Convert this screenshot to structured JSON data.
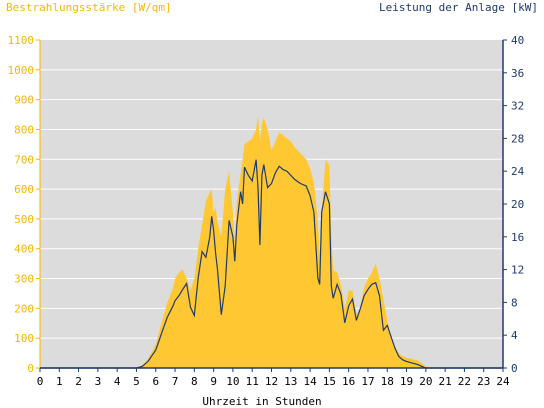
{
  "colors": {
    "plot_background": "#dcdcdc",
    "irradiance_fill": "#ffc832",
    "power_line": "#1f3a6e",
    "left_axis": "#f5b800",
    "right_axis": "#1f3a6e",
    "grid": "#ffffff"
  },
  "chart_data": {
    "type": "area",
    "title": "",
    "left_axis_title": "Bestrahlungsstärke [W/qm]",
    "right_axis_title": "Leistung der Anlage [kW]",
    "xlabel": "Uhrzeit in Stunden",
    "xlim": [
      0,
      24
    ],
    "x_ticks": [
      "0",
      "1",
      "2",
      "3",
      "4",
      "5",
      "6",
      "7",
      "8",
      "9",
      "10",
      "11",
      "12",
      "13",
      "14",
      "15",
      "16",
      "17",
      "18",
      "19",
      "20",
      "21",
      "22",
      "23",
      "24"
    ],
    "y_left": {
      "lim": [
        0,
        1100
      ],
      "ticks": [
        "0",
        "100",
        "200",
        "300",
        "400",
        "500",
        "600",
        "700",
        "800",
        "900",
        "1000",
        "1100"
      ]
    },
    "y_right": {
      "lim": [
        0,
        40
      ],
      "ticks": [
        "0",
        "4",
        "8",
        "12",
        "16",
        "20",
        "24",
        "28",
        "32",
        "36",
        "40"
      ]
    },
    "grid": "horizontal",
    "series": [
      {
        "name": "Bestrahlungsstärke [W/qm]",
        "axis": "left",
        "style": "area",
        "x": [
          0,
          5.0,
          5.3,
          5.6,
          6.0,
          6.3,
          6.6,
          6.9,
          7.0,
          7.2,
          7.4,
          7.6,
          7.8,
          8.0,
          8.2,
          8.4,
          8.6,
          8.8,
          8.9,
          9.0,
          9.1,
          9.2,
          9.4,
          9.6,
          9.8,
          10.0,
          10.1,
          10.2,
          10.4,
          10.5,
          10.6,
          10.8,
          11.0,
          11.2,
          11.3,
          11.4,
          11.5,
          11.6,
          11.8,
          12.0,
          12.2,
          12.4,
          12.6,
          12.8,
          13.0,
          13.2,
          13.5,
          13.8,
          14.0,
          14.2,
          14.4,
          14.5,
          14.6,
          14.8,
          15.0,
          15.1,
          15.2,
          15.4,
          15.6,
          15.8,
          16.0,
          16.2,
          16.4,
          16.6,
          16.8,
          17.0,
          17.2,
          17.4,
          17.6,
          17.8,
          18.0,
          18.2,
          18.4,
          18.6,
          18.8,
          19.0,
          19.3,
          19.6,
          19.8,
          20.0,
          20.2,
          24
        ],
        "y": [
          0,
          0,
          10,
          30,
          80,
          150,
          220,
          270,
          300,
          320,
          330,
          300,
          260,
          300,
          400,
          480,
          560,
          590,
          600,
          520,
          540,
          490,
          440,
          600,
          660,
          520,
          420,
          560,
          650,
          700,
          750,
          760,
          770,
          800,
          850,
          760,
          820,
          840,
          800,
          730,
          760,
          790,
          780,
          770,
          760,
          740,
          720,
          700,
          670,
          620,
          500,
          380,
          520,
          700,
          680,
          450,
          330,
          320,
          280,
          200,
          260,
          260,
          180,
          200,
          270,
          300,
          320,
          350,
          300,
          230,
          160,
          100,
          70,
          50,
          40,
          35,
          30,
          25,
          15,
          5,
          0,
          0
        ]
      },
      {
        "name": "Leistung der Anlage [kW]",
        "axis": "right",
        "style": "line",
        "x": [
          0,
          5.0,
          5.3,
          5.6,
          6.0,
          6.3,
          6.6,
          6.9,
          7.0,
          7.2,
          7.4,
          7.6,
          7.8,
          8.0,
          8.2,
          8.4,
          8.6,
          8.8,
          8.9,
          9.0,
          9.1,
          9.2,
          9.4,
          9.6,
          9.8,
          10.0,
          10.1,
          10.2,
          10.4,
          10.5,
          10.6,
          10.8,
          11.0,
          11.2,
          11.3,
          11.4,
          11.5,
          11.6,
          11.8,
          12.0,
          12.2,
          12.4,
          12.6,
          12.8,
          13.0,
          13.2,
          13.5,
          13.8,
          14.0,
          14.2,
          14.4,
          14.5,
          14.6,
          14.8,
          15.0,
          15.1,
          15.2,
          15.4,
          15.6,
          15.8,
          16.0,
          16.2,
          16.4,
          16.6,
          16.8,
          17.0,
          17.2,
          17.4,
          17.6,
          17.8,
          18.0,
          18.2,
          18.4,
          18.6,
          18.8,
          19.0,
          19.3,
          19.6,
          19.8,
          20.0,
          20.2,
          24
        ],
        "y": [
          0,
          0,
          0.2,
          0.8,
          2.2,
          4.2,
          6.2,
          7.6,
          8.2,
          8.8,
          9.6,
          10.3,
          7.4,
          6.4,
          11.0,
          14.2,
          13.5,
          16.0,
          18.5,
          16.8,
          14.0,
          12.0,
          6.5,
          10.0,
          18.0,
          16.0,
          13.0,
          17.5,
          21.5,
          20.0,
          24.5,
          23.5,
          22.8,
          25.4,
          22.0,
          15.0,
          23.5,
          24.8,
          22.0,
          22.5,
          23.8,
          24.6,
          24.2,
          24.0,
          23.5,
          23.0,
          22.5,
          22.2,
          21.0,
          19.0,
          11.0,
          10.2,
          19.0,
          21.5,
          20.0,
          10.0,
          8.5,
          10.2,
          9.0,
          5.5,
          7.6,
          8.4,
          5.8,
          7.2,
          8.8,
          9.6,
          10.2,
          10.4,
          8.8,
          4.6,
          5.2,
          3.8,
          2.4,
          1.4,
          1.0,
          0.8,
          0.6,
          0.4,
          0.2,
          0,
          0,
          0
        ]
      }
    ]
  }
}
